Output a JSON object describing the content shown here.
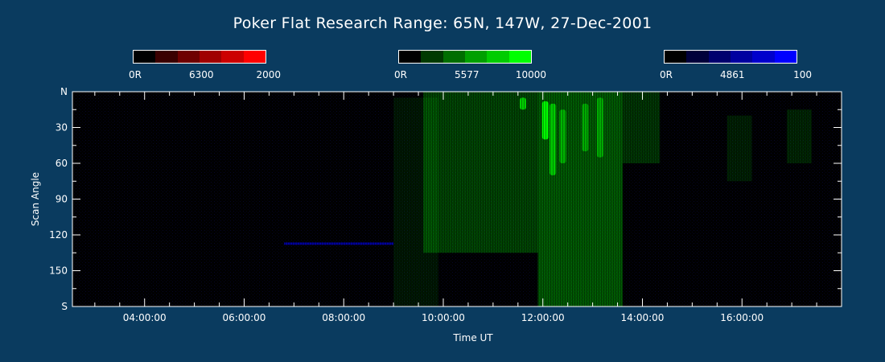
{
  "title": "Poker Flat Research Range: 65N, 147W, 27-Dec-2001",
  "colorbars": [
    {
      "min_label": "0R",
      "mid_label": "6300",
      "max_label": "2000",
      "colors": [
        "#000000",
        "#3a0000",
        "#6e0000",
        "#a00000",
        "#cc0000",
        "#ff0000"
      ]
    },
    {
      "min_label": "0R",
      "mid_label": "5577",
      "max_label": "10000",
      "colors": [
        "#000000",
        "#003a00",
        "#006e00",
        "#00a000",
        "#00cc00",
        "#00ff00"
      ]
    },
    {
      "min_label": "0R",
      "mid_label": "4861",
      "max_label": "100",
      "colors": [
        "#000000",
        "#00003a",
        "#00006e",
        "#0000a0",
        "#0000cc",
        "#0000ff"
      ]
    }
  ],
  "chart_data": {
    "type": "heatmap",
    "title": "Poker Flat Research Range: 65N, 147W, 27-Dec-2001",
    "xlabel": "Time UT",
    "ylabel": "Scan Angle",
    "x_ticks": [
      "04:00:00",
      "06:00:00",
      "08:00:00",
      "10:00:00",
      "12:00:00",
      "14:00:00",
      "16:00:00"
    ],
    "y_ticks": [
      "N",
      "30",
      "60",
      "90",
      "120",
      "150",
      "S"
    ],
    "x_range_hours": [
      2.55,
      18.0
    ],
    "y_range_deg": [
      0,
      180
    ],
    "background_color": "#000000",
    "emissions": [
      {
        "wavelength": "6300",
        "color": "#ff0000",
        "max_rayleigh": 2000
      },
      {
        "wavelength": "5577",
        "color": "#00ff00",
        "max_rayleigh": 10000
      },
      {
        "wavelength": "4861",
        "color": "#0000ff",
        "max_rayleigh": 100
      }
    ],
    "green_regions": [
      {
        "t_start": 9.0,
        "t_end": 9.9,
        "scan_start": 5,
        "scan_end": 180,
        "intensity": 0.09
      },
      {
        "t_start": 9.6,
        "t_end": 11.9,
        "scan_start": 0,
        "scan_end": 135,
        "intensity": 0.26
      },
      {
        "t_start": 11.9,
        "t_end": 13.6,
        "scan_start": 0,
        "scan_end": 180,
        "intensity": 0.34
      },
      {
        "t_start": 13.6,
        "t_end": 14.35,
        "scan_start": 0,
        "scan_end": 60,
        "intensity": 0.2
      },
      {
        "t_start": 15.7,
        "t_end": 16.2,
        "scan_start": 20,
        "scan_end": 75,
        "intensity": 0.12
      },
      {
        "t_start": 16.9,
        "t_end": 17.4,
        "scan_start": 15,
        "scan_end": 60,
        "intensity": 0.14
      }
    ],
    "bright_arcs": [
      {
        "t": 11.6,
        "scan_start": 5,
        "scan_end": 15,
        "intensity": 0.75
      },
      {
        "t": 12.05,
        "scan_start": 8,
        "scan_end": 40,
        "intensity": 1.0
      },
      {
        "t": 12.2,
        "scan_start": 10,
        "scan_end": 70,
        "intensity": 0.7
      },
      {
        "t": 12.4,
        "scan_start": 15,
        "scan_end": 60,
        "intensity": 0.55
      },
      {
        "t": 12.85,
        "scan_start": 10,
        "scan_end": 50,
        "intensity": 0.5
      },
      {
        "t": 13.15,
        "scan_start": 5,
        "scan_end": 55,
        "intensity": 0.5
      }
    ],
    "blue_band": {
      "t_start": 6.8,
      "t_end": 9.0,
      "scan": 127,
      "intensity": 0.6
    }
  }
}
